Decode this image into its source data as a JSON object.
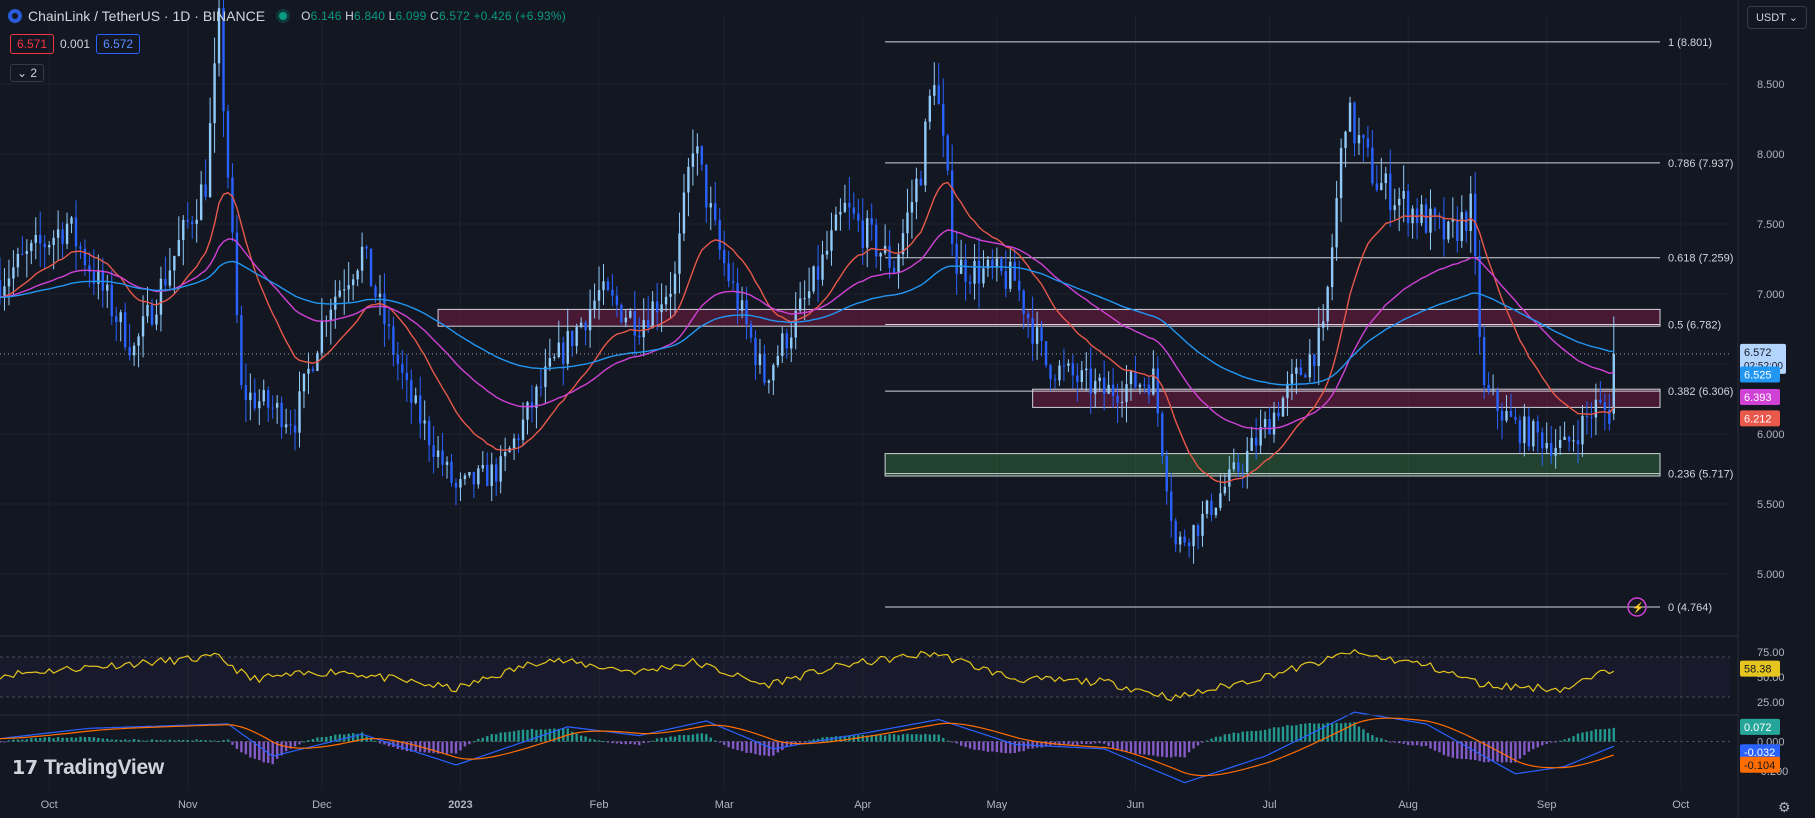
{
  "header": {
    "symbol": "ChainLink / TetherUS · 1D · BINANCE",
    "ohlc": {
      "o": "6.146",
      "h": "6.840",
      "l": "6.099",
      "c": "6.572",
      "change": "+0.426 (+6.93%)"
    },
    "sell": "6.571",
    "spread": "0.001",
    "buy": "6.572",
    "collapse": "2",
    "currency": "USDT"
  },
  "brand": {
    "name": "TradingView"
  },
  "colors": {
    "bg": "#131722",
    "up": "#90caf9",
    "down": "#2962ff",
    "ema_red": "#e8584b",
    "ema_magenta": "#d042d6",
    "ema_blue": "#2196f3",
    "rsi": "#e5c51e",
    "hist_up": "#26a69a",
    "hist_down": "#a06cf0",
    "macd": "#2962ff",
    "signal": "#ff6d00"
  },
  "chart_data": {
    "type": "line",
    "title": "ChainLink / TetherUS · 1D · BINANCE",
    "description": "Daily candlestick chart with moving averages, Fibonacci retracement levels, RSI and MACD panes",
    "x_ticks": [
      "Oct",
      "Nov",
      "Dec",
      "2023",
      "Feb",
      "Mar",
      "Apr",
      "May",
      "Jun",
      "Jul",
      "Aug",
      "Sep",
      "Oct"
    ],
    "price_axis": {
      "ticks": [
        "8.500",
        "8.000",
        "7.500",
        "7.000",
        "6.500",
        "6.000",
        "5.500",
        "5.000"
      ],
      "ylim": [
        4.6,
        9.0
      ]
    },
    "fib_levels": [
      {
        "label": "1 (8.801)",
        "value": 8.801
      },
      {
        "label": "0.786 (7.937)",
        "value": 7.937
      },
      {
        "label": "0.618 (7.259)",
        "value": 7.259
      },
      {
        "label": "0.5 (6.782)",
        "value": 6.782
      },
      {
        "label": "0.382 (6.306)",
        "value": 6.306
      },
      {
        "label": "0.236 (5.717)",
        "value": 5.717
      },
      {
        "label": "0 (4.764)",
        "value": 4.764
      }
    ],
    "zones": [
      {
        "type": "resistance",
        "from": 6.77,
        "to": 6.89
      },
      {
        "type": "resistance",
        "from": 6.19,
        "to": 6.32
      },
      {
        "type": "support",
        "from": 5.7,
        "to": 5.86
      }
    ],
    "price_keypoints": [
      [
        "2022-09-20",
        7.1
      ],
      [
        "2022-10-05",
        7.5
      ],
      [
        "2022-10-20",
        6.6
      ],
      [
        "2022-11-05",
        7.8
      ],
      [
        "2022-11-08",
        8.9
      ],
      [
        "2022-11-13",
        6.3
      ],
      [
        "2022-11-25",
        6.1
      ],
      [
        "2022-12-02",
        6.9
      ],
      [
        "2022-12-10",
        7.3
      ],
      [
        "2022-12-20",
        6.3
      ],
      [
        "2022-12-31",
        5.6
      ],
      [
        "2023-01-10",
        5.75
      ],
      [
        "2023-01-20",
        6.4
      ],
      [
        "2023-02-01",
        7.0
      ],
      [
        "2023-02-10",
        6.8
      ],
      [
        "2023-02-18",
        7.1
      ],
      [
        "2023-02-22",
        8.1
      ],
      [
        "2023-02-28",
        7.3
      ],
      [
        "2023-03-10",
        6.4
      ],
      [
        "2023-03-15",
        6.7
      ],
      [
        "2023-03-20",
        7.0
      ],
      [
        "2023-03-28",
        7.6
      ],
      [
        "2023-04-08",
        7.2
      ],
      [
        "2023-04-14",
        7.9
      ],
      [
        "2023-04-17",
        8.6
      ],
      [
        "2023-04-22",
        7.2
      ],
      [
        "2023-05-05",
        7.1
      ],
      [
        "2023-05-12",
        6.5
      ],
      [
        "2023-05-25",
        6.3
      ],
      [
        "2023-06-05",
        6.4
      ],
      [
        "2023-06-10",
        5.2
      ],
      [
        "2023-06-15",
        5.35
      ],
      [
        "2023-06-25",
        5.8
      ],
      [
        "2023-07-05",
        6.3
      ],
      [
        "2023-07-13",
        6.7
      ],
      [
        "2023-07-18",
        8.3
      ],
      [
        "2023-07-25",
        7.8
      ],
      [
        "2023-08-02",
        7.6
      ],
      [
        "2023-08-10",
        7.4
      ],
      [
        "2023-08-15",
        7.6
      ],
      [
        "2023-08-18",
        6.3
      ],
      [
        "2023-08-25",
        6.05
      ],
      [
        "2023-09-05",
        5.9
      ],
      [
        "2023-09-12",
        6.2
      ],
      [
        "2023-09-15",
        6.146
      ],
      [
        "2023-09-16",
        6.572
      ]
    ],
    "last_candle": {
      "open": 6.146,
      "high": 6.84,
      "low": 6.099,
      "close": 6.572
    },
    "labels_right": {
      "price": "6.572",
      "countdown": "02:52:00",
      "ma1": "6.525",
      "ma2": "6.393",
      "ma3": "6.212"
    },
    "rsi": {
      "ticks": [
        "75.00",
        "50.00",
        "25.00"
      ],
      "ylim": [
        15,
        85
      ],
      "bands": [
        30,
        70
      ],
      "last": "58.38",
      "keypoints": [
        [
          "2022-09-20",
          52
        ],
        [
          "2022-10-10",
          60
        ],
        [
          "2022-11-08",
          70
        ],
        [
          "2022-11-15",
          48
        ],
        [
          "2022-12-05",
          56
        ],
        [
          "2022-12-31",
          38
        ],
        [
          "2023-01-20",
          68
        ],
        [
          "2023-02-10",
          55
        ],
        [
          "2023-02-22",
          65
        ],
        [
          "2023-03-10",
          42
        ],
        [
          "2023-03-28",
          62
        ],
        [
          "2023-04-17",
          74
        ],
        [
          "2023-05-05",
          48
        ],
        [
          "2023-05-25",
          45
        ],
        [
          "2023-06-10",
          29
        ],
        [
          "2023-06-25",
          45
        ],
        [
          "2023-07-15",
          68
        ],
        [
          "2023-07-18",
          75
        ],
        [
          "2023-08-05",
          62
        ],
        [
          "2023-08-18",
          42
        ],
        [
          "2023-09-05",
          38
        ],
        [
          "2023-09-16",
          58.38
        ]
      ]
    },
    "macd": {
      "ticks": [
        "0.000",
        "-0.200"
      ],
      "ylim": [
        -0.33,
        0.16
      ],
      "last": {
        "hist": "0.072",
        "macd": "-0.032",
        "signal": "-0.104"
      },
      "keypoints": [
        [
          "2022-09-20",
          0.02
        ],
        [
          "2022-10-10",
          0.09
        ],
        [
          "2022-11-10",
          0.12
        ],
        [
          "2022-11-20",
          -0.1
        ],
        [
          "2022-12-10",
          0.05
        ],
        [
          "2022-12-31",
          -0.16
        ],
        [
          "2023-01-25",
          0.1
        ],
        [
          "2023-02-10",
          0.04
        ],
        [
          "2023-02-25",
          0.14
        ],
        [
          "2023-03-12",
          -0.05
        ],
        [
          "2023-04-02",
          0.06
        ],
        [
          "2023-04-18",
          0.15
        ],
        [
          "2023-05-05",
          -0.02
        ],
        [
          "2023-05-25",
          -0.05
        ],
        [
          "2023-06-12",
          -0.28
        ],
        [
          "2023-06-30",
          -0.1
        ],
        [
          "2023-07-20",
          0.2
        ],
        [
          "2023-08-05",
          0.12
        ],
        [
          "2023-08-25",
          -0.22
        ],
        [
          "2023-09-05",
          -0.17
        ],
        [
          "2023-09-16",
          -0.032
        ]
      ]
    }
  }
}
